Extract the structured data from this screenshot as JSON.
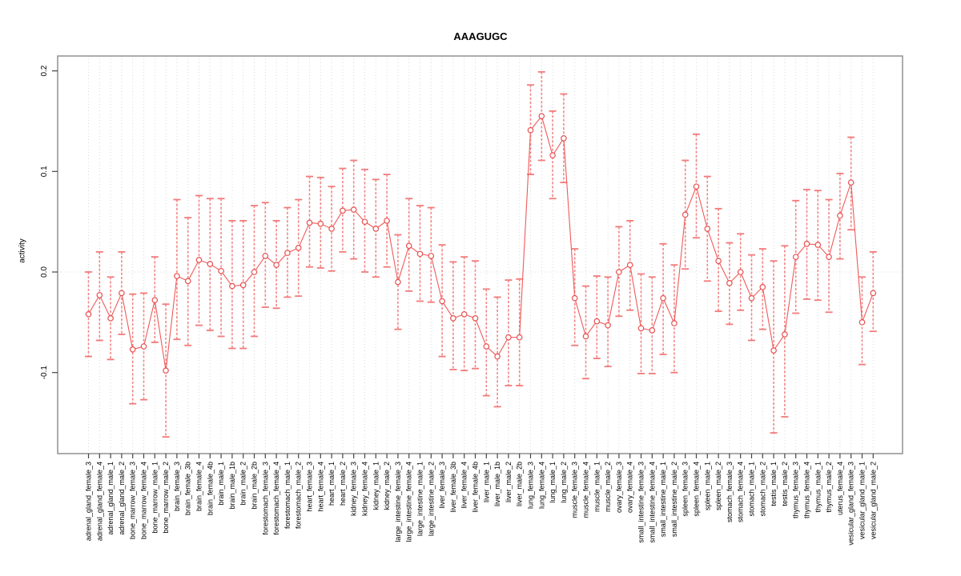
{
  "figure": {
    "title": "AAAGUGC"
  },
  "chart_data": {
    "type": "scatter",
    "title": "AAAGUGC",
    "xlabel": "",
    "ylabel": "activity",
    "ylim": [
      -0.18,
      0.215
    ],
    "yticks": [
      -0.1,
      0.0,
      0.1,
      0.2
    ],
    "grid": "vertical dotted gridline at every category; horizontal dotted line at 0",
    "legend": "none",
    "marker": "open-circle",
    "error_bars": true,
    "colors": {
      "points": "#e85050",
      "line": "#ef5a5a",
      "error_bar": "#f37a7a",
      "gridline": "#d9d9d9",
      "box": "#909090",
      "tick": "#444444",
      "text": "#000000"
    },
    "categories": [
      "adrenal_gland_female_3",
      "adrenal_gland_female_4",
      "adrenal_gland_male_1",
      "adrenal_gland_male_2",
      "bone_marrow_female_3",
      "bone_marrow_female_4",
      "bone_marrow_male_1",
      "bone_marrow_male_2",
      "brain_female_3",
      "brain_female_3b",
      "brain_female_4",
      "brain_female_4b",
      "brain_male_1",
      "brain_male_1b",
      "brain_male_2",
      "brain_male_2b",
      "forestomach_female_3",
      "forestomach_female_4",
      "forestomach_male_1",
      "forestomach_male_2",
      "heart_female_3",
      "heart_female_4",
      "heart_male_1",
      "heart_male_2",
      "kidney_female_3",
      "kidney_female_4",
      "kidney_male_1",
      "kidney_male_2",
      "large_intestine_female_3",
      "large_intestine_female_4",
      "large_intestine_male_1",
      "large_intestine_male_2",
      "liver_female_3",
      "liver_female_3b",
      "liver_female_4",
      "liver_female_4b",
      "liver_male_1",
      "liver_male_1b",
      "liver_male_2",
      "liver_male_2b",
      "lung_female_3",
      "lung_female_4",
      "lung_male_1",
      "lung_male_2",
      "muscle_female_3",
      "muscle_female_4",
      "muscle_male_1",
      "muscle_male_2",
      "ovary_female_3",
      "ovary_female_4",
      "small_intestine_female_3",
      "small_intestine_female_4",
      "small_intestine_male_1",
      "small_intestine_male_2",
      "spleen_female_3",
      "spleen_female_4",
      "spleen_male_1",
      "spleen_male_2",
      "stomach_female_3",
      "stomach_female_4",
      "stomach_male_1",
      "stomach_male_2",
      "testis_male_1",
      "testis_male_2",
      "thymus_female_3",
      "thymus_female_4",
      "thymus_male_1",
      "thymus_male_2",
      "uterus_female_4",
      "vesicular_gland_female_3",
      "vesicular_gland_male_1",
      "vesicular_gland_male_2"
    ],
    "series": [
      {
        "name": "activity",
        "values": [
          -0.042,
          -0.023,
          -0.046,
          -0.021,
          -0.077,
          -0.074,
          -0.028,
          -0.098,
          -0.004,
          -0.009,
          0.012,
          0.008,
          0.001,
          -0.014,
          -0.013,
          0.0,
          0.016,
          0.007,
          0.019,
          0.024,
          0.049,
          0.048,
          0.043,
          0.061,
          0.062,
          0.05,
          0.043,
          0.051,
          -0.01,
          0.026,
          0.018,
          0.016,
          -0.029,
          -0.046,
          -0.042,
          -0.046,
          -0.074,
          -0.084,
          -0.065,
          -0.065,
          0.141,
          0.155,
          0.116,
          0.133,
          -0.026,
          -0.064,
          -0.049,
          -0.053,
          0.0,
          0.007,
          -0.056,
          -0.058,
          -0.026,
          -0.051,
          0.057,
          0.085,
          0.043,
          0.011,
          -0.011,
          0.0,
          -0.026,
          -0.015,
          -0.078,
          -0.062,
          0.015,
          0.028,
          0.027,
          0.015,
          0.056,
          0.089,
          -0.05,
          -0.021
        ],
        "ci_low": [
          -0.084,
          -0.068,
          -0.087,
          -0.062,
          -0.131,
          -0.127,
          -0.07,
          -0.164,
          -0.067,
          -0.073,
          -0.053,
          -0.058,
          -0.064,
          -0.076,
          -0.076,
          -0.064,
          -0.035,
          -0.036,
          -0.025,
          -0.024,
          0.005,
          0.004,
          0.001,
          0.02,
          0.013,
          0.0,
          -0.005,
          0.005,
          -0.057,
          -0.019,
          -0.029,
          -0.03,
          -0.084,
          -0.097,
          -0.098,
          -0.096,
          -0.123,
          -0.134,
          -0.113,
          -0.113,
          0.097,
          0.111,
          0.073,
          0.089,
          -0.073,
          -0.106,
          -0.086,
          -0.094,
          -0.044,
          -0.038,
          -0.101,
          -0.101,
          -0.082,
          -0.1,
          0.003,
          0.034,
          -0.009,
          -0.039,
          -0.052,
          -0.038,
          -0.068,
          -0.057,
          -0.16,
          -0.144,
          -0.041,
          -0.027,
          -0.028,
          -0.04,
          0.013,
          0.042,
          -0.092,
          -0.059
        ],
        "ci_high": [
          0.0,
          0.02,
          -0.005,
          0.02,
          -0.022,
          -0.021,
          0.015,
          -0.032,
          0.072,
          0.054,
          0.076,
          0.073,
          0.073,
          0.051,
          0.051,
          0.066,
          0.069,
          0.051,
          0.064,
          0.072,
          0.095,
          0.094,
          0.085,
          0.103,
          0.111,
          0.102,
          0.092,
          0.097,
          0.037,
          0.073,
          0.066,
          0.064,
          0.027,
          0.01,
          0.015,
          0.011,
          -0.017,
          -0.025,
          -0.008,
          -0.007,
          0.186,
          0.199,
          0.16,
          0.177,
          0.023,
          -0.014,
          -0.004,
          -0.005,
          0.045,
          0.051,
          -0.002,
          -0.005,
          0.028,
          0.007,
          0.111,
          0.137,
          0.095,
          0.063,
          0.029,
          0.038,
          0.017,
          0.023,
          0.011,
          0.026,
          0.071,
          0.082,
          0.081,
          0.072,
          0.098,
          0.134,
          -0.005,
          0.02
        ]
      }
    ]
  }
}
